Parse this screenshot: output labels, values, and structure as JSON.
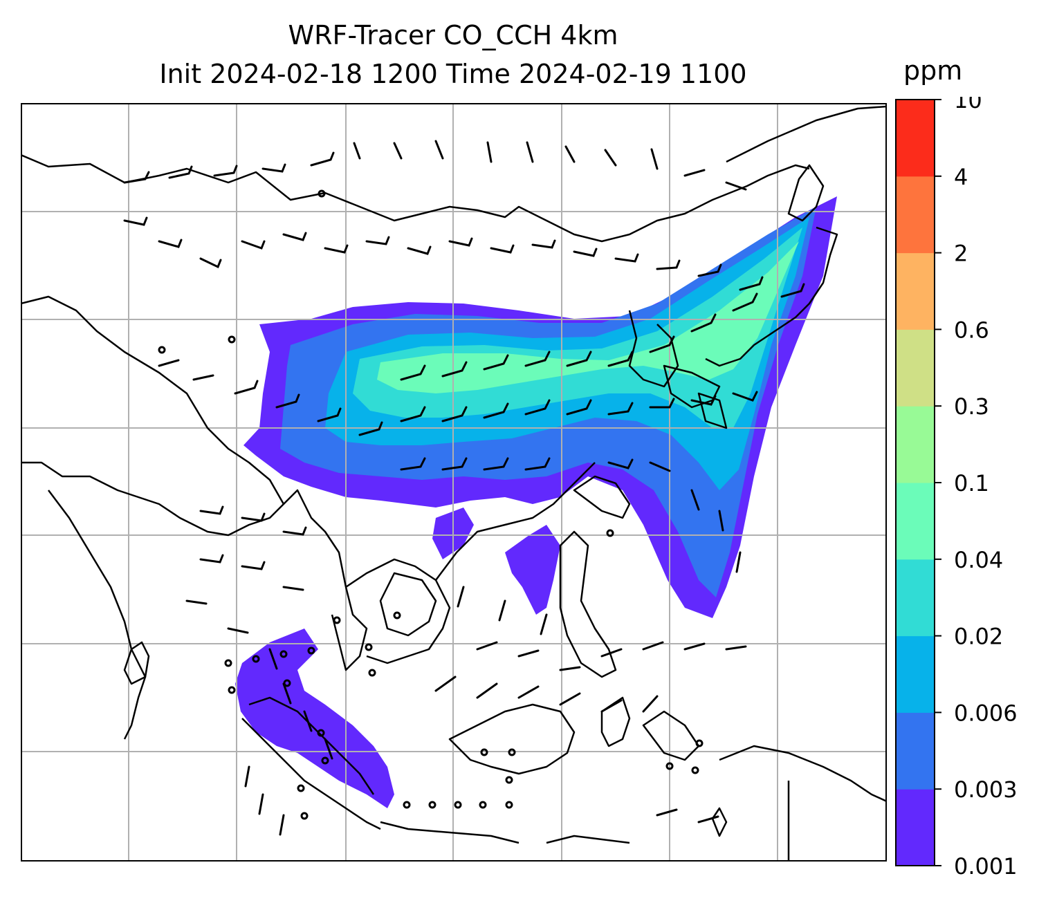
{
  "figure": {
    "title_line1": "WRF-Tracer CO_CCH 4km",
    "title_line2": "Init 2024-02-18 1200 Time 2024-02-19 1100"
  },
  "colorbar": {
    "unit": "ppm",
    "ticks": [
      "0.001",
      "0.003",
      "0.006",
      "0.02",
      "0.04",
      "0.1",
      "0.3",
      "0.6",
      "2",
      "4",
      "10"
    ],
    "colors": [
      "#6229fd",
      "#3374f0",
      "#07b2ea",
      "#31dcd5",
      "#6bfcb9",
      "#98fa96",
      "#cfe086",
      "#feb361",
      "#fe743d",
      "#fc2c1b"
    ]
  },
  "map": {
    "coastline_color": "#000000",
    "gridline_color": "#b0b0b0",
    "wind_barbs": "on",
    "gridlines": "on"
  }
}
